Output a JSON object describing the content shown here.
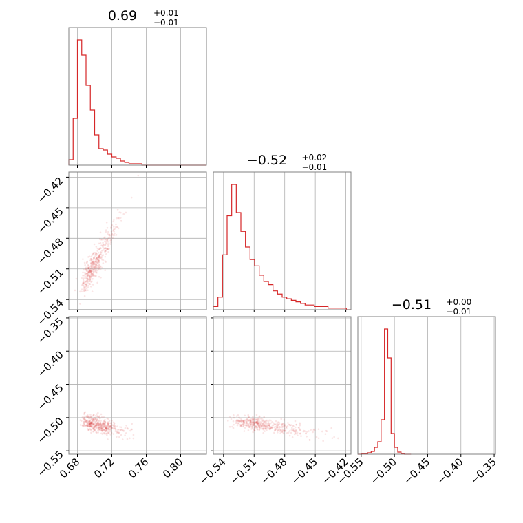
{
  "colors": {
    "series": "#d62728",
    "grid": "#b0b0b0",
    "frame": "#808080"
  },
  "chart_data": {
    "type": "corner",
    "grid": true,
    "parameters": [
      {
        "range": [
          0.67,
          0.83
        ],
        "ticks": [
          0.68,
          0.72,
          0.76,
          0.8
        ],
        "tick_labels": [
          "0.68",
          "0.72",
          "0.76",
          "0.80"
        ],
        "title": {
          "value": "0.69",
          "upper": "+0.01",
          "lower": "−0.01"
        },
        "histogram": {
          "bin_edges": [
            0.67,
            0.675,
            0.68,
            0.685,
            0.69,
            0.695,
            0.7,
            0.705,
            0.71,
            0.715,
            0.72,
            0.725,
            0.73,
            0.735,
            0.74,
            0.745,
            0.75,
            0.755,
            0.76,
            0.765,
            0.77,
            0.775,
            0.78,
            0.785,
            0.79,
            0.795,
            0.8,
            0.805,
            0.81,
            0.815,
            0.82,
            0.825,
            0.83
          ],
          "counts": [
            4,
            34,
            91,
            80,
            58,
            40,
            22,
            12,
            11,
            8,
            6,
            5,
            3,
            2,
            1,
            1,
            1,
            0,
            0,
            0,
            0,
            0,
            0,
            0,
            0,
            0,
            0,
            0,
            0,
            0,
            0,
            0
          ]
        }
      },
      {
        "range": [
          -0.55,
          -0.415
        ],
        "ticks": [
          -0.54,
          -0.51,
          -0.48,
          -0.45,
          -0.42
        ],
        "tick_labels": [
          "−0.54",
          "−0.51",
          "−0.48",
          "−0.45",
          "−0.42"
        ],
        "title": {
          "value": "−0.52",
          "upper": "+0.02",
          "lower": "−0.01"
        },
        "histogram": {
          "bin_edges": [
            -0.55,
            -0.5455,
            -0.541,
            -0.5365,
            -0.532,
            -0.5275,
            -0.523,
            -0.5185,
            -0.514,
            -0.5095,
            -0.505,
            -0.5005,
            -0.496,
            -0.4915,
            -0.487,
            -0.4825,
            -0.478,
            -0.4735,
            -0.469,
            -0.4645,
            -0.46,
            -0.4555,
            -0.451,
            -0.4465,
            -0.442,
            -0.4375,
            -0.433,
            -0.4285,
            -0.424,
            -0.4195,
            -0.415
          ],
          "counts": [
            2,
            8,
            35,
            60,
            80,
            62,
            50,
            40,
            32,
            28,
            22,
            18,
            16,
            12,
            10,
            8,
            7,
            6,
            5,
            4,
            3,
            3,
            2,
            2,
            2,
            1,
            1,
            1,
            1,
            0
          ]
        }
      },
      {
        "range": [
          -0.555,
          -0.348
        ],
        "ticks": [
          -0.55,
          -0.5,
          -0.45,
          -0.4,
          -0.35
        ],
        "tick_labels": [
          "−0.55",
          "−0.50",
          "−0.45",
          "−0.40",
          "−0.35"
        ],
        "title": {
          "value": "−0.51",
          "upper": "+0.00",
          "lower": "−0.01"
        },
        "histogram": {
          "bin_edges": [
            -0.555,
            -0.55,
            -0.545,
            -0.54,
            -0.535,
            -0.53,
            -0.525,
            -0.52,
            -0.515,
            -0.51,
            -0.505,
            -0.5,
            -0.495,
            -0.49,
            -0.485,
            -0.48,
            -0.475
          ],
          "counts": [
            0,
            1,
            1,
            2,
            4,
            10,
            18,
            50,
            182,
            140,
            30,
            10,
            3,
            1,
            0,
            0
          ]
        }
      }
    ],
    "scatter_2d": [
      {
        "x_param": 0,
        "y_param": 1,
        "trend": "strong positive correlation",
        "center": [
          0.688,
          -0.525
        ],
        "extent_x": [
          0.675,
          0.755
        ],
        "extent_y": [
          -0.545,
          -0.42
        ]
      },
      {
        "x_param": 0,
        "y_param": 2,
        "trend": "flat",
        "center": [
          0.69,
          -0.505
        ],
        "extent_x": [
          0.675,
          0.745
        ],
        "extent_y": [
          -0.525,
          -0.49
        ]
      },
      {
        "x_param": 1,
        "y_param": 2,
        "trend": "slight negative",
        "center": [
          -0.525,
          -0.505
        ],
        "extent_x": [
          -0.545,
          -0.43
        ],
        "extent_y": [
          -0.525,
          -0.49
        ]
      }
    ]
  }
}
